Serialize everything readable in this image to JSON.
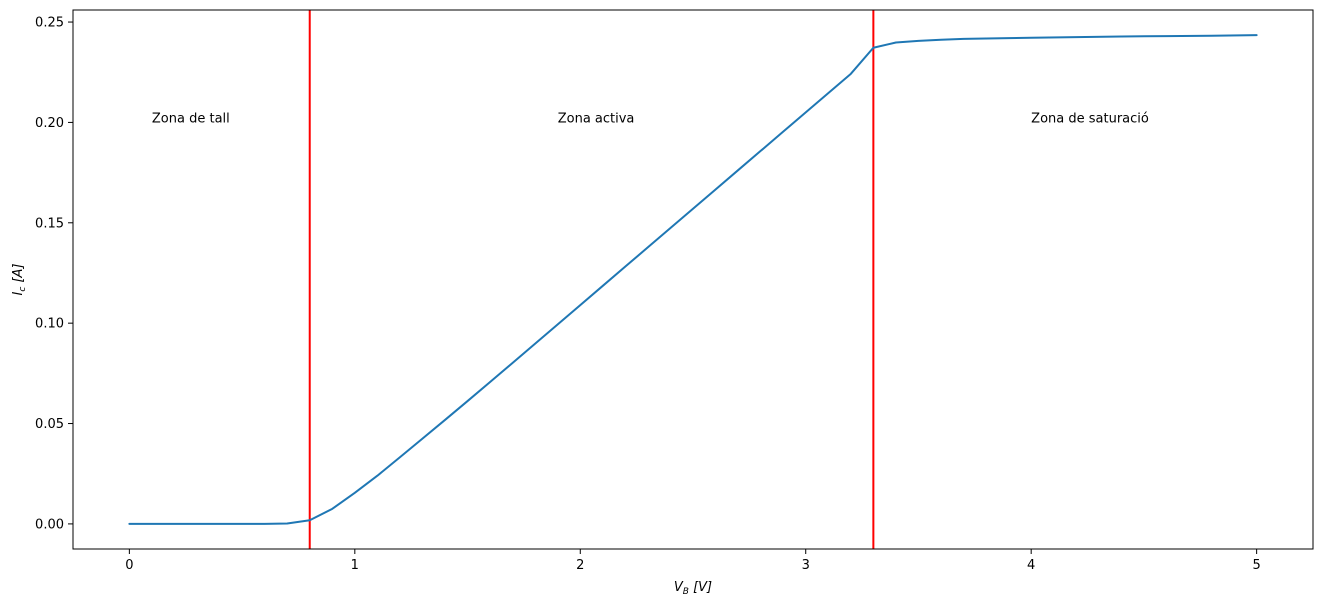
{
  "chart_data": {
    "type": "line",
    "xlabel": {
      "var": "V",
      "sub": "B",
      "unit": "[V]"
    },
    "ylabel": {
      "var": "I",
      "sub": "c",
      "unit": "[A]"
    },
    "xlim": [
      -0.25,
      5.25
    ],
    "ylim": [
      -0.0125,
      0.256
    ],
    "xticks": [
      0,
      1,
      2,
      3,
      4,
      5
    ],
    "xtick_labels": [
      "0",
      "1",
      "2",
      "3",
      "4",
      "5"
    ],
    "yticks": [
      0.0,
      0.05,
      0.1,
      0.15,
      0.2,
      0.25
    ],
    "ytick_labels": [
      "0.00",
      "0.05",
      "0.10",
      "0.15",
      "0.20",
      "0.25"
    ],
    "grid": false,
    "series": [
      {
        "color": "#1f77b4",
        "x": [
          0,
          0.1,
          0.2,
          0.3,
          0.4,
          0.5,
          0.6,
          0.7,
          0.8,
          0.9,
          1.0,
          1.1,
          1.2,
          1.3,
          1.4,
          1.5,
          1.6,
          1.7,
          1.8,
          1.9,
          2.0,
          2.1,
          2.2,
          2.3,
          2.4,
          2.5,
          2.6,
          2.7,
          2.8,
          2.9,
          3.0,
          3.1,
          3.2,
          3.3,
          3.4,
          3.5,
          3.6,
          3.7,
          3.8,
          3.9,
          4.0,
          4.2,
          4.4,
          4.6,
          4.8,
          5.0
        ],
        "y": [
          0,
          0,
          0,
          0,
          0,
          0,
          0,
          0.0002,
          0.0018,
          0.0075,
          0.0155,
          0.024,
          0.0332,
          0.0425,
          0.0518,
          0.0612,
          0.0707,
          0.0802,
          0.0898,
          0.0994,
          0.109,
          0.1186,
          0.1282,
          0.1378,
          0.1474,
          0.157,
          0.1666,
          0.1762,
          0.1858,
          0.1954,
          0.205,
          0.2146,
          0.2242,
          0.2372,
          0.2398,
          0.2406,
          0.2412,
          0.2416,
          0.2418,
          0.242,
          0.2422,
          0.2425,
          0.2428,
          0.243,
          0.2432,
          0.2435
        ]
      }
    ],
    "vlines": [
      {
        "x": 0.8,
        "color": "#ff0000"
      },
      {
        "x": 3.3,
        "color": "#ff0000"
      }
    ],
    "annotations": [
      {
        "text": "Zona de tall",
        "x": 0.1,
        "y": 0.2
      },
      {
        "text": "Zona activa",
        "x": 1.9,
        "y": 0.2
      },
      {
        "text": "Zona de saturació",
        "x": 4.0,
        "y": 0.2
      }
    ]
  }
}
